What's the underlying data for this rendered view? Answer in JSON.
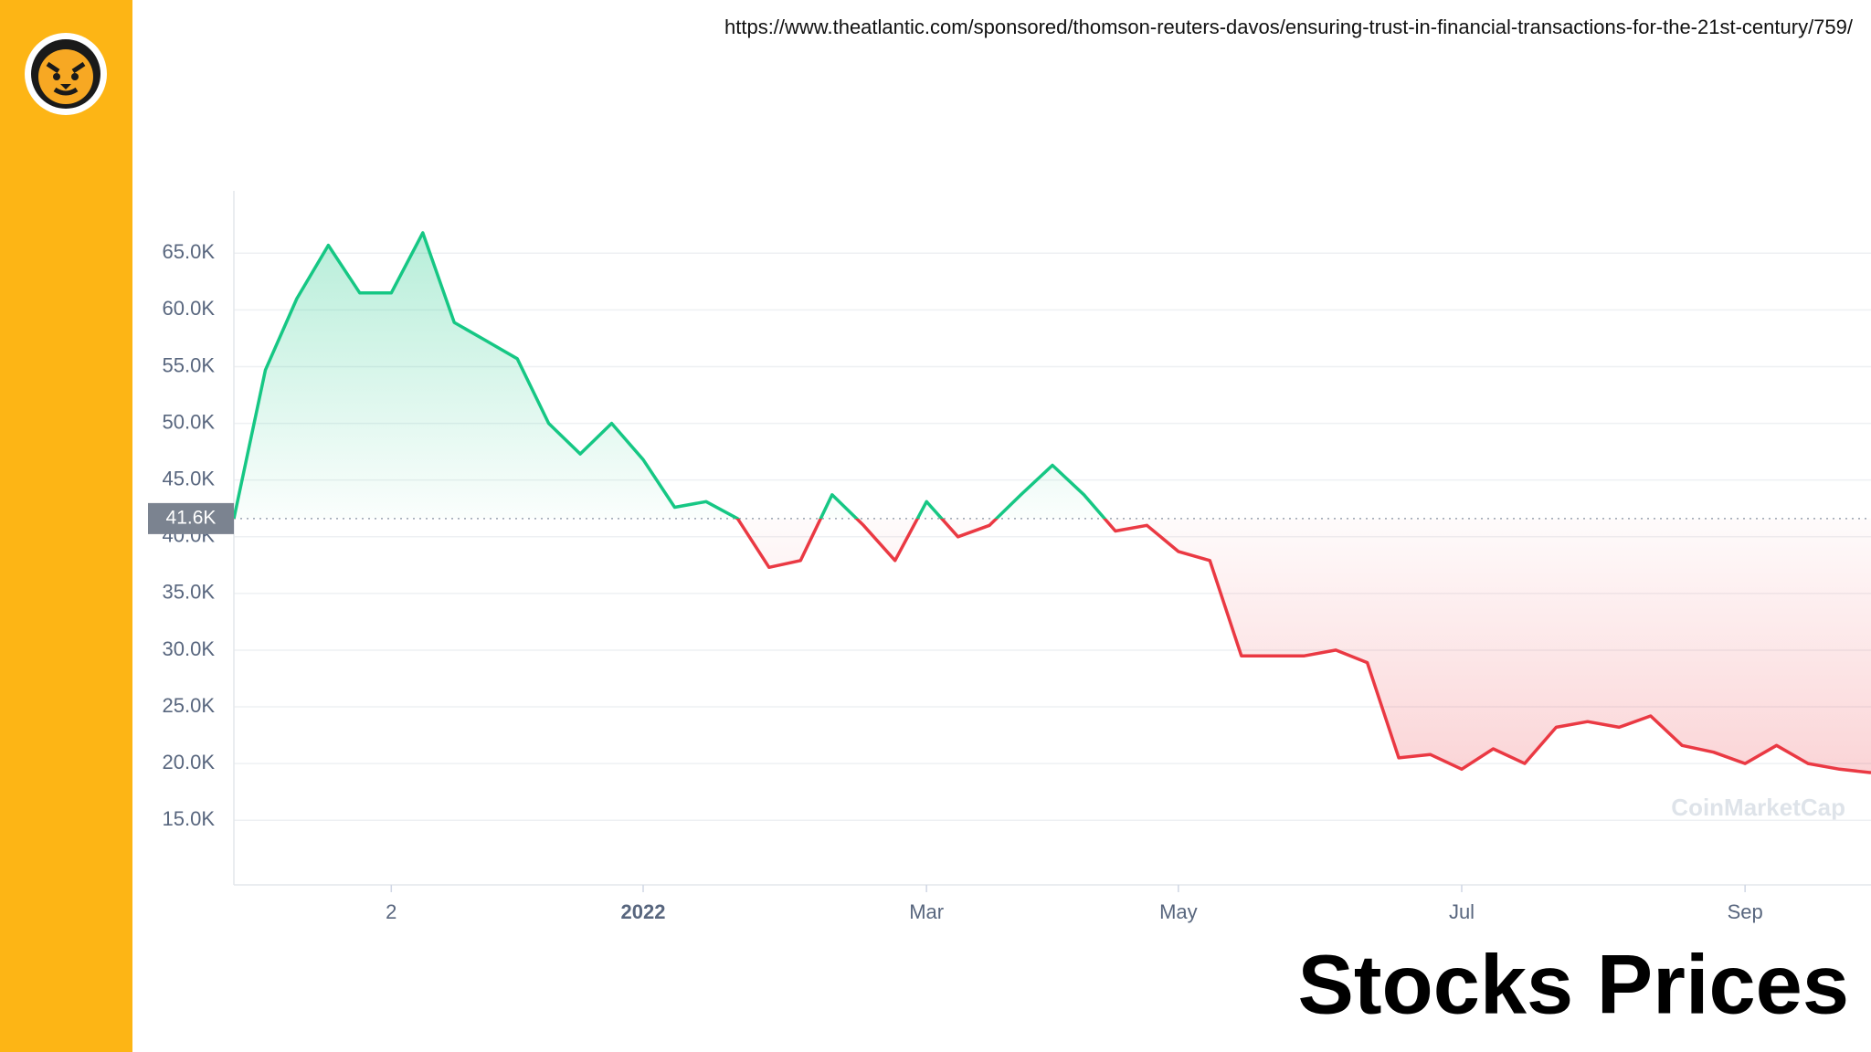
{
  "url": "https://www.theatlantic.com/sponsored/thomson-reuters-davos/ensuring-trust-in-financial-transactions-for-the-21st-century/759/",
  "caption": "Stocks Prices",
  "watermark": "CoinMarketCap",
  "chart_data": {
    "type": "line",
    "categories": [
      null,
      null,
      null,
      null,
      null,
      "2",
      null,
      null,
      null,
      null,
      null,
      null,
      null,
      "2022",
      null,
      null,
      null,
      null,
      null,
      null,
      null,
      null,
      "Mar",
      null,
      null,
      null,
      null,
      null,
      null,
      null,
      "May",
      null,
      null,
      null,
      null,
      null,
      null,
      null,
      null,
      "Jul",
      null,
      null,
      null,
      null,
      null,
      null,
      null,
      null,
      "Sep",
      null,
      null,
      null,
      null
    ],
    "values": [
      41600,
      54700,
      61000,
      65700,
      61500,
      61500,
      66800,
      58900,
      57300,
      55700,
      50000,
      47300,
      50000,
      46800,
      42600,
      43100,
      41600,
      37300,
      37900,
      43700,
      41000,
      37900,
      43100,
      40000,
      41000,
      43700,
      46300,
      43700,
      40500,
      41000,
      38700,
      37900,
      29500,
      29500,
      29500,
      30000,
      28900,
      20500,
      20800,
      19500,
      21300,
      20000,
      23200,
      23700,
      23200,
      24200,
      21600,
      21000,
      20000,
      21600,
      20000,
      19500,
      19200
    ],
    "colors": {
      "above": "#16c784",
      "below": "#ea3943"
    },
    "reference": {
      "value": 41600,
      "label": "41.6K"
    },
    "ylim": [
      9300,
      70500
    ],
    "yticks": [
      {
        "value": 15000,
        "label": "15.0K"
      },
      {
        "value": 20000,
        "label": "20.0K"
      },
      {
        "value": 25000,
        "label": "25.0K"
      },
      {
        "value": 30000,
        "label": "30.0K"
      },
      {
        "value": 35000,
        "label": "35.0K"
      },
      {
        "value": 40000,
        "label": "40.0K"
      },
      {
        "value": 45000,
        "label": "45.0K"
      },
      {
        "value": 50000,
        "label": "50.0K"
      },
      {
        "value": 55000,
        "label": "55.0K"
      },
      {
        "value": 60000,
        "label": "60.0K"
      },
      {
        "value": 65000,
        "label": "65.0K"
      }
    ],
    "grid": true
  }
}
